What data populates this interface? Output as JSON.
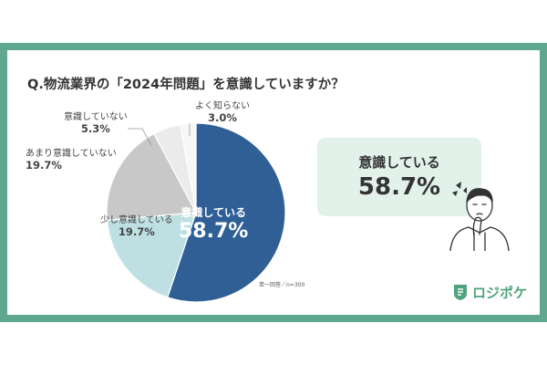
{
  "title": "Q.物流業界の「2024年問題」を意識していますか？",
  "chart_data": {
    "type": "pie",
    "slices": [
      {
        "label": "意識している",
        "value": 58.7,
        "display": "58.7%",
        "color": "#2f5f95"
      },
      {
        "label": "少し意識している",
        "value": 19.7,
        "display": "19.7%",
        "color": "#bfe0e3"
      },
      {
        "label": "あまり意識していない",
        "value": 19.7,
        "display": "19.7%",
        "color": "#c8c8c8"
      },
      {
        "label": "意識していない",
        "value": 5.3,
        "display": "5.3%",
        "color": "#ebebeb"
      },
      {
        "label": "よく知らない",
        "value": 3.0,
        "display": "3.0%",
        "color": "#f7f7f7"
      }
    ]
  },
  "callout": {
    "label": "意識している",
    "value": "58.7%"
  },
  "note": "単一回答／n=300",
  "logo": {
    "text": "ロジポケ",
    "icon": "logistics-shield-icon"
  },
  "colors": {
    "frame": "#5fa88f",
    "callout_bg": "#e2f1ea",
    "accent": "#4fa37e"
  }
}
